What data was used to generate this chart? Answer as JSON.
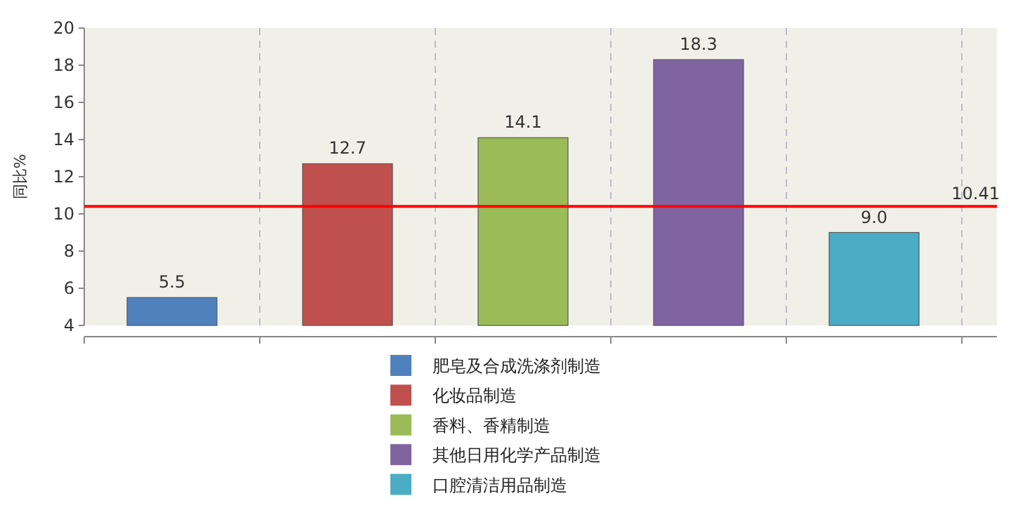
{
  "chart_data": {
    "type": "bar",
    "ylabel": "同比%",
    "categories": [
      null,
      null,
      null,
      null,
      null
    ],
    "series": [
      {
        "name": "肥皂及合成洗涤剂制造",
        "color": "#4f81bd",
        "values": [
          5.5,
          null,
          null,
          null,
          null
        ],
        "value_labels": [
          "5.5",
          null,
          null,
          null,
          null
        ]
      },
      {
        "name": "化妆品制造",
        "color": "#c0504d",
        "values": [
          null,
          12.7,
          null,
          null,
          null
        ],
        "value_labels": [
          null,
          "12.7",
          null,
          null,
          null
        ]
      },
      {
        "name": "香料、香精制造",
        "color": "#9bbb59",
        "values": [
          null,
          null,
          14.1,
          null,
          null
        ],
        "value_labels": [
          null,
          null,
          "14.1",
          null,
          null
        ]
      },
      {
        "name": "其他日用化学产品制造",
        "color": "#8064a2",
        "values": [
          null,
          null,
          null,
          18.3,
          null
        ],
        "value_labels": [
          null,
          null,
          null,
          "18.3",
          null
        ]
      },
      {
        "name": "口腔清洁用品制造",
        "color": "#4bacc6",
        "values": [
          null,
          null,
          null,
          null,
          9.0
        ],
        "value_labels": [
          null,
          null,
          null,
          null,
          "9.0"
        ]
      }
    ],
    "ylim": [
      4,
      20
    ],
    "yticks": [
      4,
      6,
      8,
      10,
      12,
      14,
      16,
      18,
      20
    ],
    "ref_lines": [
      {
        "axis": "y",
        "value": 10.41,
        "label": "10.41",
        "color": "#ff0000"
      }
    ],
    "grid": "x",
    "legend": "bottom",
    "tick_labels": "y"
  }
}
